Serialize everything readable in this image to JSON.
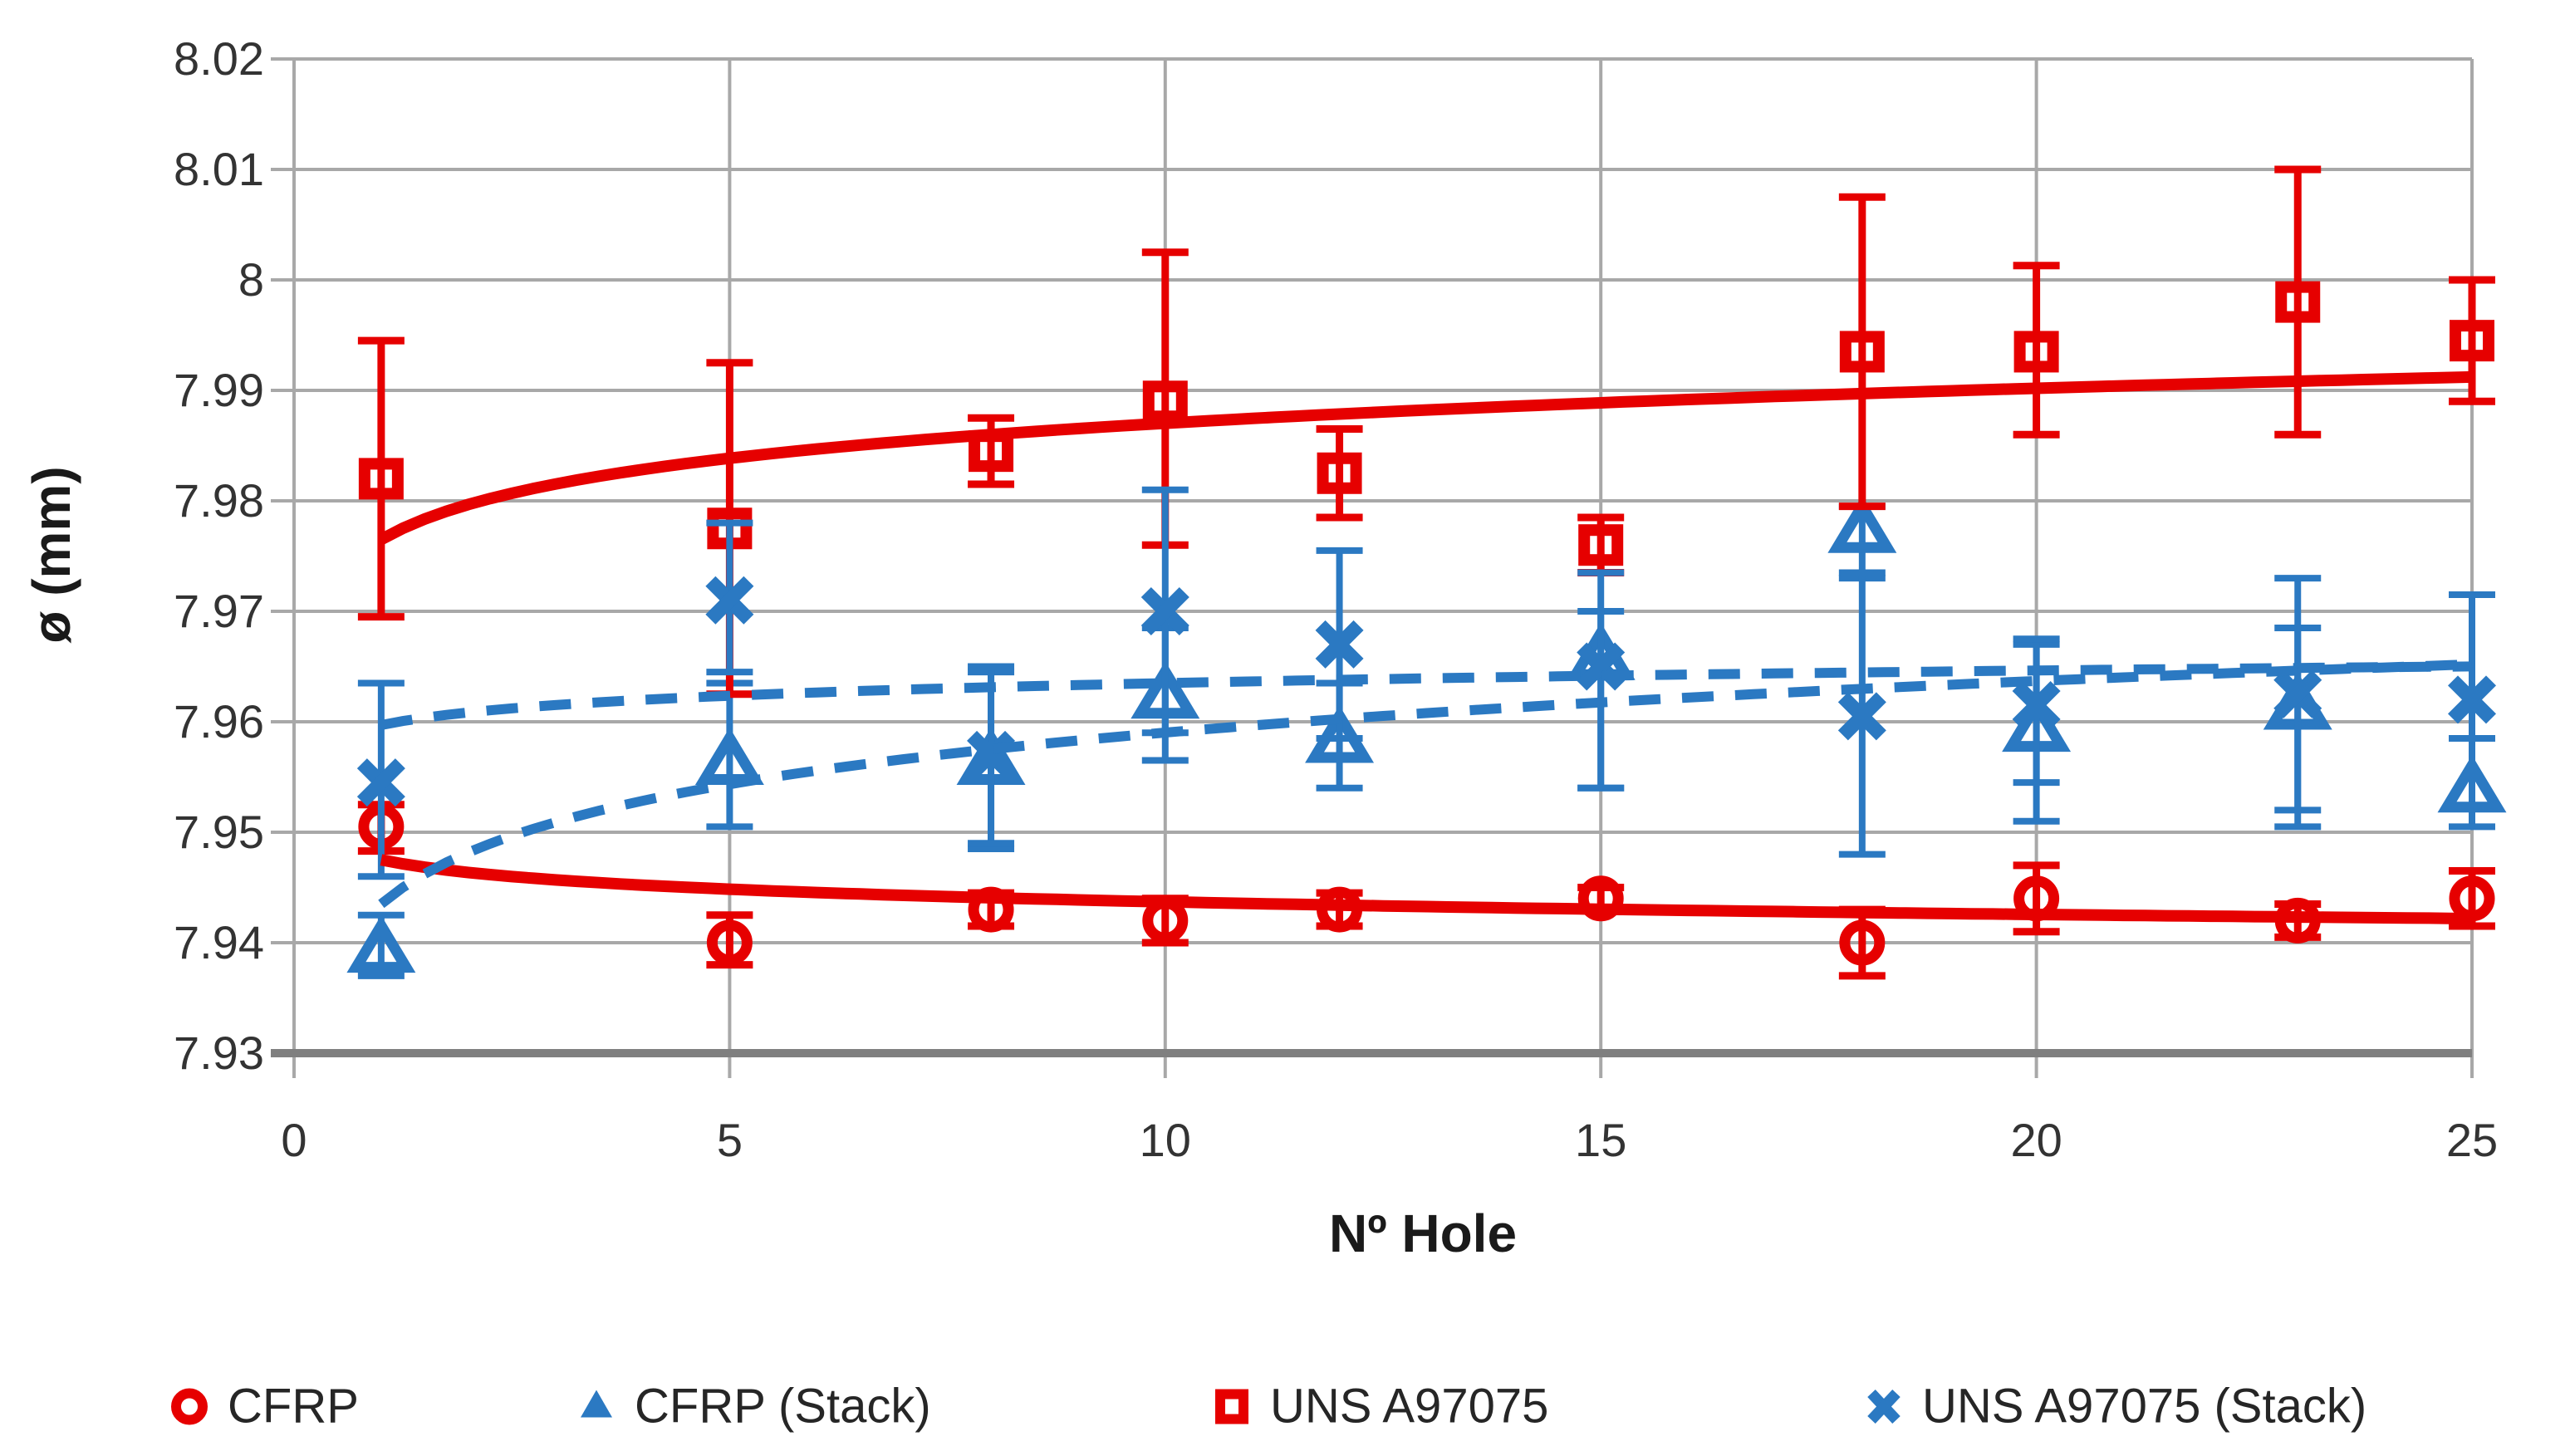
{
  "colors": {
    "red": "#e60000",
    "blue": "#2b79c2",
    "grid": "#a8a8a8",
    "axis": "#7f7f7f",
    "tick_text": "#333333",
    "title_text": "#1a1a1a",
    "background": "#ffffff"
  },
  "chart_data": {
    "type": "scatter",
    "title": "",
    "xlabel": "Nº Hole",
    "ylabel": "ø (mm)",
    "xlim": [
      0,
      25
    ],
    "ylim": [
      7.93,
      8.02
    ],
    "grid": true,
    "x_ticks": [
      {
        "value": 0,
        "label": "0"
      },
      {
        "value": 5,
        "label": "5"
      },
      {
        "value": 10,
        "label": "10"
      },
      {
        "value": 15,
        "label": "15"
      },
      {
        "value": 20,
        "label": "20"
      },
      {
        "value": 25,
        "label": "25"
      }
    ],
    "y_ticks": [
      {
        "value": 8.02,
        "label": "8.02"
      },
      {
        "value": 8.01,
        "label": "8.01"
      },
      {
        "value": 8.0,
        "label": "8"
      },
      {
        "value": 7.99,
        "label": "7.99"
      },
      {
        "value": 7.98,
        "label": "7.98"
      },
      {
        "value": 7.97,
        "label": "7.97"
      },
      {
        "value": 7.96,
        "label": "7.96"
      },
      {
        "value": 7.95,
        "label": "7.95"
      },
      {
        "value": 7.94,
        "label": "7.94"
      },
      {
        "value": 7.93,
        "label": "7.93"
      }
    ],
    "x": [
      1,
      5,
      8,
      10,
      12,
      15,
      18,
      20,
      23,
      25
    ],
    "series": [
      {
        "name": "CFRP",
        "marker": "circle",
        "color": "#e60000",
        "values": [
          7.9505,
          7.94,
          7.943,
          7.942,
          7.943,
          7.944,
          7.94,
          7.944,
          7.942,
          7.944
        ],
        "err_top": [
          7.9525,
          7.9425,
          7.9445,
          7.944,
          7.9445,
          7.945,
          7.943,
          7.947,
          7.9435,
          7.9465
        ],
        "err_bottom": [
          7.9483,
          7.938,
          7.9415,
          7.94,
          7.9415,
          7.943,
          7.937,
          7.941,
          7.9405,
          7.9415
        ]
      },
      {
        "name": "CFRP (Stack)",
        "marker": "triangle",
        "color": "#2b79c2",
        "values": [
          7.9395,
          7.9565,
          7.9565,
          7.9625,
          7.9585,
          7.966,
          7.9775,
          7.9595,
          7.9615,
          7.954
        ],
        "err_top": [
          7.9425,
          7.9635,
          7.9645,
          7.9685,
          7.9635,
          7.97,
          7.9795,
          7.967,
          7.9685,
          7.9585
        ],
        "err_bottom": [
          7.937,
          7.9505,
          7.9485,
          7.9565,
          7.954,
          7.954,
          7.973,
          7.951,
          7.952,
          7.9505
        ]
      },
      {
        "name": "UNS A97075",
        "marker": "square",
        "color": "#e60000",
        "values": [
          7.982,
          7.9775,
          7.9845,
          7.989,
          7.9825,
          7.976,
          7.9935,
          7.9935,
          7.998,
          7.9945
        ],
        "err_top": [
          7.9945,
          7.9925,
          7.9875,
          8.0025,
          7.9865,
          7.9785,
          8.0075,
          8.0013,
          8.01,
          8.0
        ],
        "err_bottom": [
          7.9695,
          7.9625,
          7.9815,
          7.976,
          7.9785,
          7.9735,
          7.9795,
          7.986,
          7.986,
          7.989
        ]
      },
      {
        "name": "UNS A97075 (Stack)",
        "marker": "x",
        "color": "#2b79c2",
        "values": [
          7.9545,
          7.971,
          7.957,
          7.97,
          7.967,
          7.965,
          7.9605,
          7.9615,
          7.9625,
          7.962
        ],
        "err_top": [
          7.9635,
          7.978,
          7.965,
          7.981,
          7.9755,
          7.9735,
          7.9735,
          7.9675,
          7.973,
          7.9715
        ],
        "err_bottom": [
          7.946,
          7.9645,
          7.949,
          7.959,
          7.9585,
          7.954,
          7.948,
          7.9545,
          7.9505,
          7.9585
        ]
      }
    ],
    "trendlines": [
      {
        "series": "UNS A97075",
        "type": "logarithmic",
        "a": 7.9765,
        "b": 0.00457,
        "style": "solid",
        "color": "#e60000"
      },
      {
        "series": "CFRP",
        "type": "logarithmic",
        "a": 7.9475,
        "b": -0.00165,
        "style": "solid",
        "color": "#e60000"
      },
      {
        "series": "UNS A97075 (Stack)",
        "type": "logarithmic",
        "a": 7.9597,
        "b": 0.00165,
        "style": "dashed",
        "color": "#2b79c2"
      },
      {
        "series": "CFRP (Stack)",
        "type": "logarithmic",
        "a": 7.9435,
        "b": 0.00674,
        "style": "dashed",
        "color": "#2b79c2"
      }
    ],
    "legend": {
      "position": "bottom",
      "entries": [
        "CFRP",
        "CFRP (Stack)",
        "UNS A97075",
        "UNS A97075 (Stack)"
      ]
    }
  }
}
